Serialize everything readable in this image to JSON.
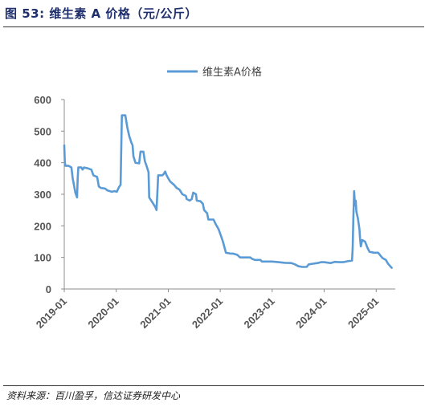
{
  "header": {
    "title": "图 53:  维生素 A 价格（元/公斤）"
  },
  "footer": {
    "source": "资料来源：百川盈孚，信达证券研发中心"
  },
  "chart_data": {
    "type": "line",
    "title": "",
    "xlabel": "",
    "ylabel": "",
    "ylim": [
      0,
      600
    ],
    "yticks": [
      "0",
      "100",
      "200",
      "300",
      "400",
      "500",
      "600"
    ],
    "xticks": [
      "2019-01",
      "2020-01",
      "2021-01",
      "2022-01",
      "2023-01",
      "2024-01",
      "2025-01"
    ],
    "xlim": [
      "2019-01-01",
      "2025-05-15"
    ],
    "legend_position": "top-center",
    "grid": false,
    "series": [
      {
        "name": "维生素A价格",
        "color": "#5b9bd5",
        "points": [
          [
            "2019-01-01",
            455
          ],
          [
            "2019-01-05",
            400
          ],
          [
            "2019-01-10",
            390
          ],
          [
            "2019-02-01",
            390
          ],
          [
            "2019-02-20",
            385
          ],
          [
            "2019-03-01",
            350
          ],
          [
            "2019-03-10",
            330
          ],
          [
            "2019-03-20",
            305
          ],
          [
            "2019-04-01",
            290
          ],
          [
            "2019-04-05",
            350
          ],
          [
            "2019-04-10",
            385
          ],
          [
            "2019-05-01",
            385
          ],
          [
            "2019-05-10",
            378
          ],
          [
            "2019-05-20",
            385
          ],
          [
            "2019-06-15",
            382
          ],
          [
            "2019-07-10",
            378
          ],
          [
            "2019-07-25",
            360
          ],
          [
            "2019-08-20",
            355
          ],
          [
            "2019-09-01",
            325
          ],
          [
            "2019-09-15",
            320
          ],
          [
            "2019-10-15",
            318
          ],
          [
            "2019-11-01",
            312
          ],
          [
            "2019-12-01",
            308
          ],
          [
            "2019-12-20",
            310
          ],
          [
            "2020-01-05",
            308
          ],
          [
            "2020-01-20",
            322
          ],
          [
            "2020-02-01",
            330
          ],
          [
            "2020-02-10",
            550
          ],
          [
            "2020-03-05",
            550
          ],
          [
            "2020-03-20",
            510
          ],
          [
            "2020-04-01",
            485
          ],
          [
            "2020-04-15",
            465
          ],
          [
            "2020-04-25",
            455
          ],
          [
            "2020-05-01",
            420
          ],
          [
            "2020-05-15",
            400
          ],
          [
            "2020-06-10",
            398
          ],
          [
            "2020-06-20",
            435
          ],
          [
            "2020-07-10",
            435
          ],
          [
            "2020-07-20",
            405
          ],
          [
            "2020-08-01",
            390
          ],
          [
            "2020-08-15",
            370
          ],
          [
            "2020-08-20",
            290
          ],
          [
            "2020-09-10",
            275
          ],
          [
            "2020-10-01",
            260
          ],
          [
            "2020-10-10",
            250
          ],
          [
            "2020-10-15",
            295
          ],
          [
            "2020-10-22",
            360
          ],
          [
            "2020-11-20",
            360
          ],
          [
            "2020-12-01",
            365
          ],
          [
            "2020-12-10",
            372
          ],
          [
            "2020-12-20",
            360
          ],
          [
            "2021-01-01",
            350
          ],
          [
            "2021-01-15",
            340
          ],
          [
            "2021-02-10",
            330
          ],
          [
            "2021-03-01",
            320
          ],
          [
            "2021-03-20",
            315
          ],
          [
            "2021-04-10",
            300
          ],
          [
            "2021-05-05",
            295
          ],
          [
            "2021-05-10",
            285
          ],
          [
            "2021-06-01",
            280
          ],
          [
            "2021-06-15",
            285
          ],
          [
            "2021-06-25",
            305
          ],
          [
            "2021-07-15",
            300
          ],
          [
            "2021-07-20",
            280
          ],
          [
            "2021-08-15",
            278
          ],
          [
            "2021-09-01",
            270
          ],
          [
            "2021-09-10",
            250
          ],
          [
            "2021-10-01",
            240
          ],
          [
            "2021-10-10",
            220
          ],
          [
            "2021-11-15",
            220
          ],
          [
            "2021-12-01",
            205
          ],
          [
            "2021-12-20",
            190
          ],
          [
            "2022-01-05",
            170
          ],
          [
            "2022-01-20",
            150
          ],
          [
            "2022-02-10",
            115
          ],
          [
            "2022-03-15",
            112
          ],
          [
            "2022-04-01",
            112
          ],
          [
            "2022-05-01",
            108
          ],
          [
            "2022-05-20",
            100
          ],
          [
            "2022-07-01",
            100
          ],
          [
            "2022-08-01",
            100
          ],
          [
            "2022-08-10",
            96
          ],
          [
            "2022-09-01",
            92
          ],
          [
            "2022-10-10",
            92
          ],
          [
            "2022-10-20",
            87
          ],
          [
            "2022-12-01",
            87
          ],
          [
            "2023-01-01",
            87
          ],
          [
            "2023-02-15",
            85
          ],
          [
            "2023-04-01",
            83
          ],
          [
            "2023-05-15",
            82
          ],
          [
            "2023-06-10",
            78
          ],
          [
            "2023-07-05",
            72
          ],
          [
            "2023-08-01",
            70
          ],
          [
            "2023-09-01",
            70
          ],
          [
            "2023-09-15",
            78
          ],
          [
            "2023-10-15",
            80
          ],
          [
            "2023-11-15",
            82
          ],
          [
            "2023-12-10",
            85
          ],
          [
            "2024-01-01",
            85
          ],
          [
            "2024-02-15",
            82
          ],
          [
            "2024-03-15",
            86
          ],
          [
            "2024-04-15",
            85
          ],
          [
            "2024-05-15",
            85
          ],
          [
            "2024-06-15",
            88
          ],
          [
            "2024-07-15",
            90
          ],
          [
            "2024-07-20",
            130
          ],
          [
            "2024-07-25",
            230
          ],
          [
            "2024-07-30",
            310
          ],
          [
            "2024-08-05",
            265
          ],
          [
            "2024-08-10",
            280
          ],
          [
            "2024-08-15",
            245
          ],
          [
            "2024-08-25",
            225
          ],
          [
            "2024-09-05",
            190
          ],
          [
            "2024-09-10",
            160
          ],
          [
            "2024-09-15",
            135
          ],
          [
            "2024-09-25",
            155
          ],
          [
            "2024-10-15",
            150
          ],
          [
            "2024-11-01",
            130
          ],
          [
            "2024-11-15",
            118
          ],
          [
            "2024-12-15",
            115
          ],
          [
            "2025-01-15",
            115
          ],
          [
            "2025-02-01",
            105
          ],
          [
            "2025-02-15",
            98
          ],
          [
            "2025-03-10",
            92
          ],
          [
            "2025-03-25",
            80
          ],
          [
            "2025-04-10",
            72
          ],
          [
            "2025-04-20",
            67
          ]
        ]
      }
    ]
  }
}
